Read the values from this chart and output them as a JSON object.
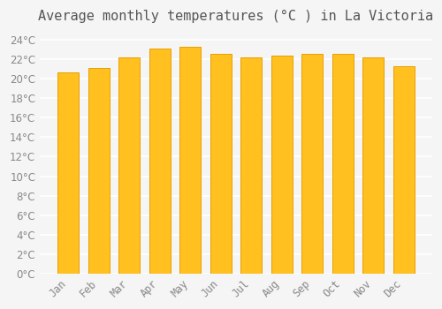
{
  "title": "Average monthly temperatures (°C ) in La Victoria",
  "months": [
    "Jan",
    "Feb",
    "Mar",
    "Apr",
    "May",
    "Jun",
    "Jul",
    "Aug",
    "Sep",
    "Oct",
    "Nov",
    "Dec"
  ],
  "values": [
    20.7,
    21.1,
    22.2,
    23.1,
    23.3,
    22.6,
    22.2,
    22.4,
    22.6,
    22.6,
    22.2,
    21.3
  ],
  "bar_color": "#FFC020",
  "bar_edge_color": "#E8A000",
  "background_color": "#F5F5F5",
  "grid_color": "#FFFFFF",
  "text_color": "#888888",
  "ylim": [
    0,
    25
  ],
  "yticks": [
    0,
    2,
    4,
    6,
    8,
    10,
    12,
    14,
    16,
    18,
    20,
    22,
    24
  ],
  "title_fontsize": 11,
  "tick_fontsize": 8.5
}
